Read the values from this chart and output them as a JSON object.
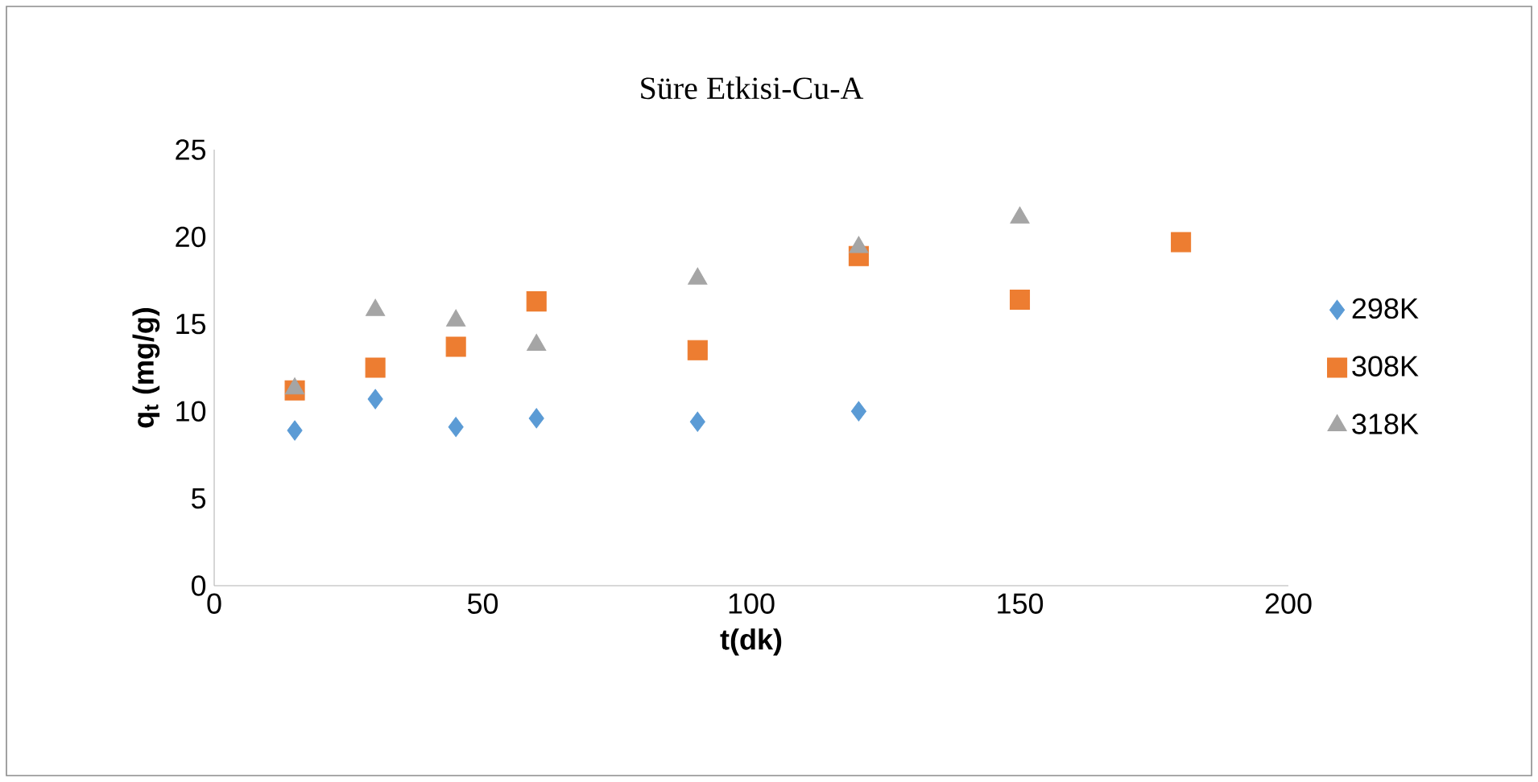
{
  "chart_data": {
    "type": "scatter",
    "title": "Süre Etkisi-Cu-A",
    "xlabel": "t(dk)",
    "ylabel": "**q$_{t}$ (mg/g)**",
    "xlim": [
      0,
      200
    ],
    "xticks": [
      0,
      50,
      100,
      150,
      200
    ],
    "ylim": [
      0,
      25
    ],
    "yticks": [
      0,
      5,
      10,
      15,
      20,
      25
    ],
    "grid": false,
    "legend": "right",
    "series": [
      {
        "name": "298K",
        "color": "#5b9bd5",
        "marker": "diamond",
        "x": [
          15,
          30,
          45,
          60,
          90,
          120
        ],
        "values": [
          8.9,
          10.7,
          9.1,
          9.6,
          9.4,
          10.0
        ]
      },
      {
        "name": "308K",
        "color": "#ed7d31",
        "marker": "square",
        "x": [
          15,
          30,
          45,
          60,
          90,
          120,
          150,
          180
        ],
        "values": [
          11.2,
          12.5,
          13.7,
          16.3,
          13.5,
          18.9,
          16.4,
          19.7
        ]
      },
      {
        "name": "318K",
        "color": "#a5a5a5",
        "marker": "triangle",
        "x": [
          15,
          30,
          45,
          60,
          90,
          120,
          150
        ],
        "values": [
          11.3,
          15.8,
          15.2,
          13.8,
          17.6,
          19.4,
          21.1
        ]
      }
    ]
  }
}
